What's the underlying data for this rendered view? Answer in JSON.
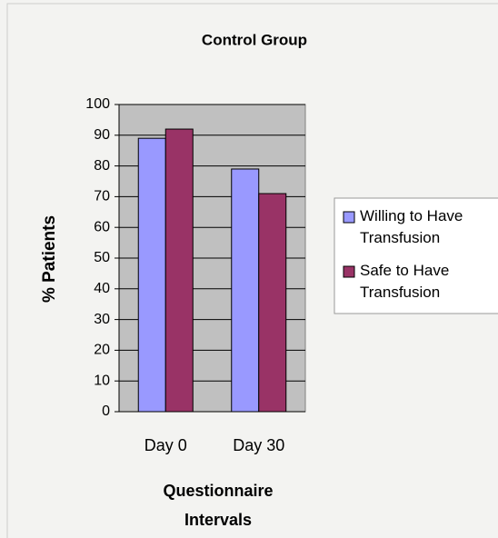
{
  "chart_data": {
    "type": "bar",
    "title": "Control Group",
    "xlabel": "Questionnaire Intervals",
    "ylabel": "% Patients",
    "categories": [
      "Day 0",
      "Day 30"
    ],
    "series": [
      {
        "name": "Willing to Have Transfusion",
        "color": "#9999ff",
        "values": [
          89,
          79
        ]
      },
      {
        "name": "Safe to Have Transfusion",
        "color": "#993366",
        "values": [
          92,
          71
        ]
      }
    ],
    "ylim": [
      0,
      100
    ],
    "yticks": [
      0,
      10,
      20,
      30,
      40,
      50,
      60,
      70,
      80,
      90,
      100
    ],
    "grid": true,
    "legend": "right"
  }
}
